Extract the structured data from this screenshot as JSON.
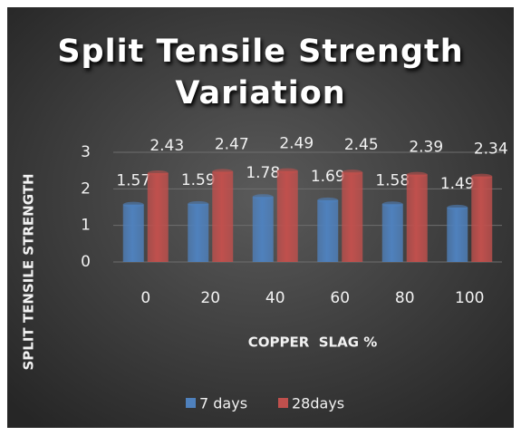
{
  "chart_data": {
    "type": "bar",
    "title": "Split Tensile Strength Variation",
    "x_label": "COPPER  SLAG %",
    "y_label": "SPLIT TENSILE STRENGTH",
    "categories": [
      "0",
      "20",
      "40",
      "60",
      "80",
      "100"
    ],
    "series": [
      {
        "name": "7 days",
        "color": "#4f81bd",
        "values": [
          1.57,
          1.59,
          1.78,
          1.69,
          1.58,
          1.49
        ]
      },
      {
        "name": "28days",
        "color": "#c0504d",
        "values": [
          2.43,
          2.47,
          2.49,
          2.45,
          2.39,
          2.34
        ]
      }
    ],
    "ylim": [
      0,
      3
    ],
    "yticks": [
      0,
      1,
      2,
      3
    ],
    "grid": true,
    "legend": "bottom"
  }
}
